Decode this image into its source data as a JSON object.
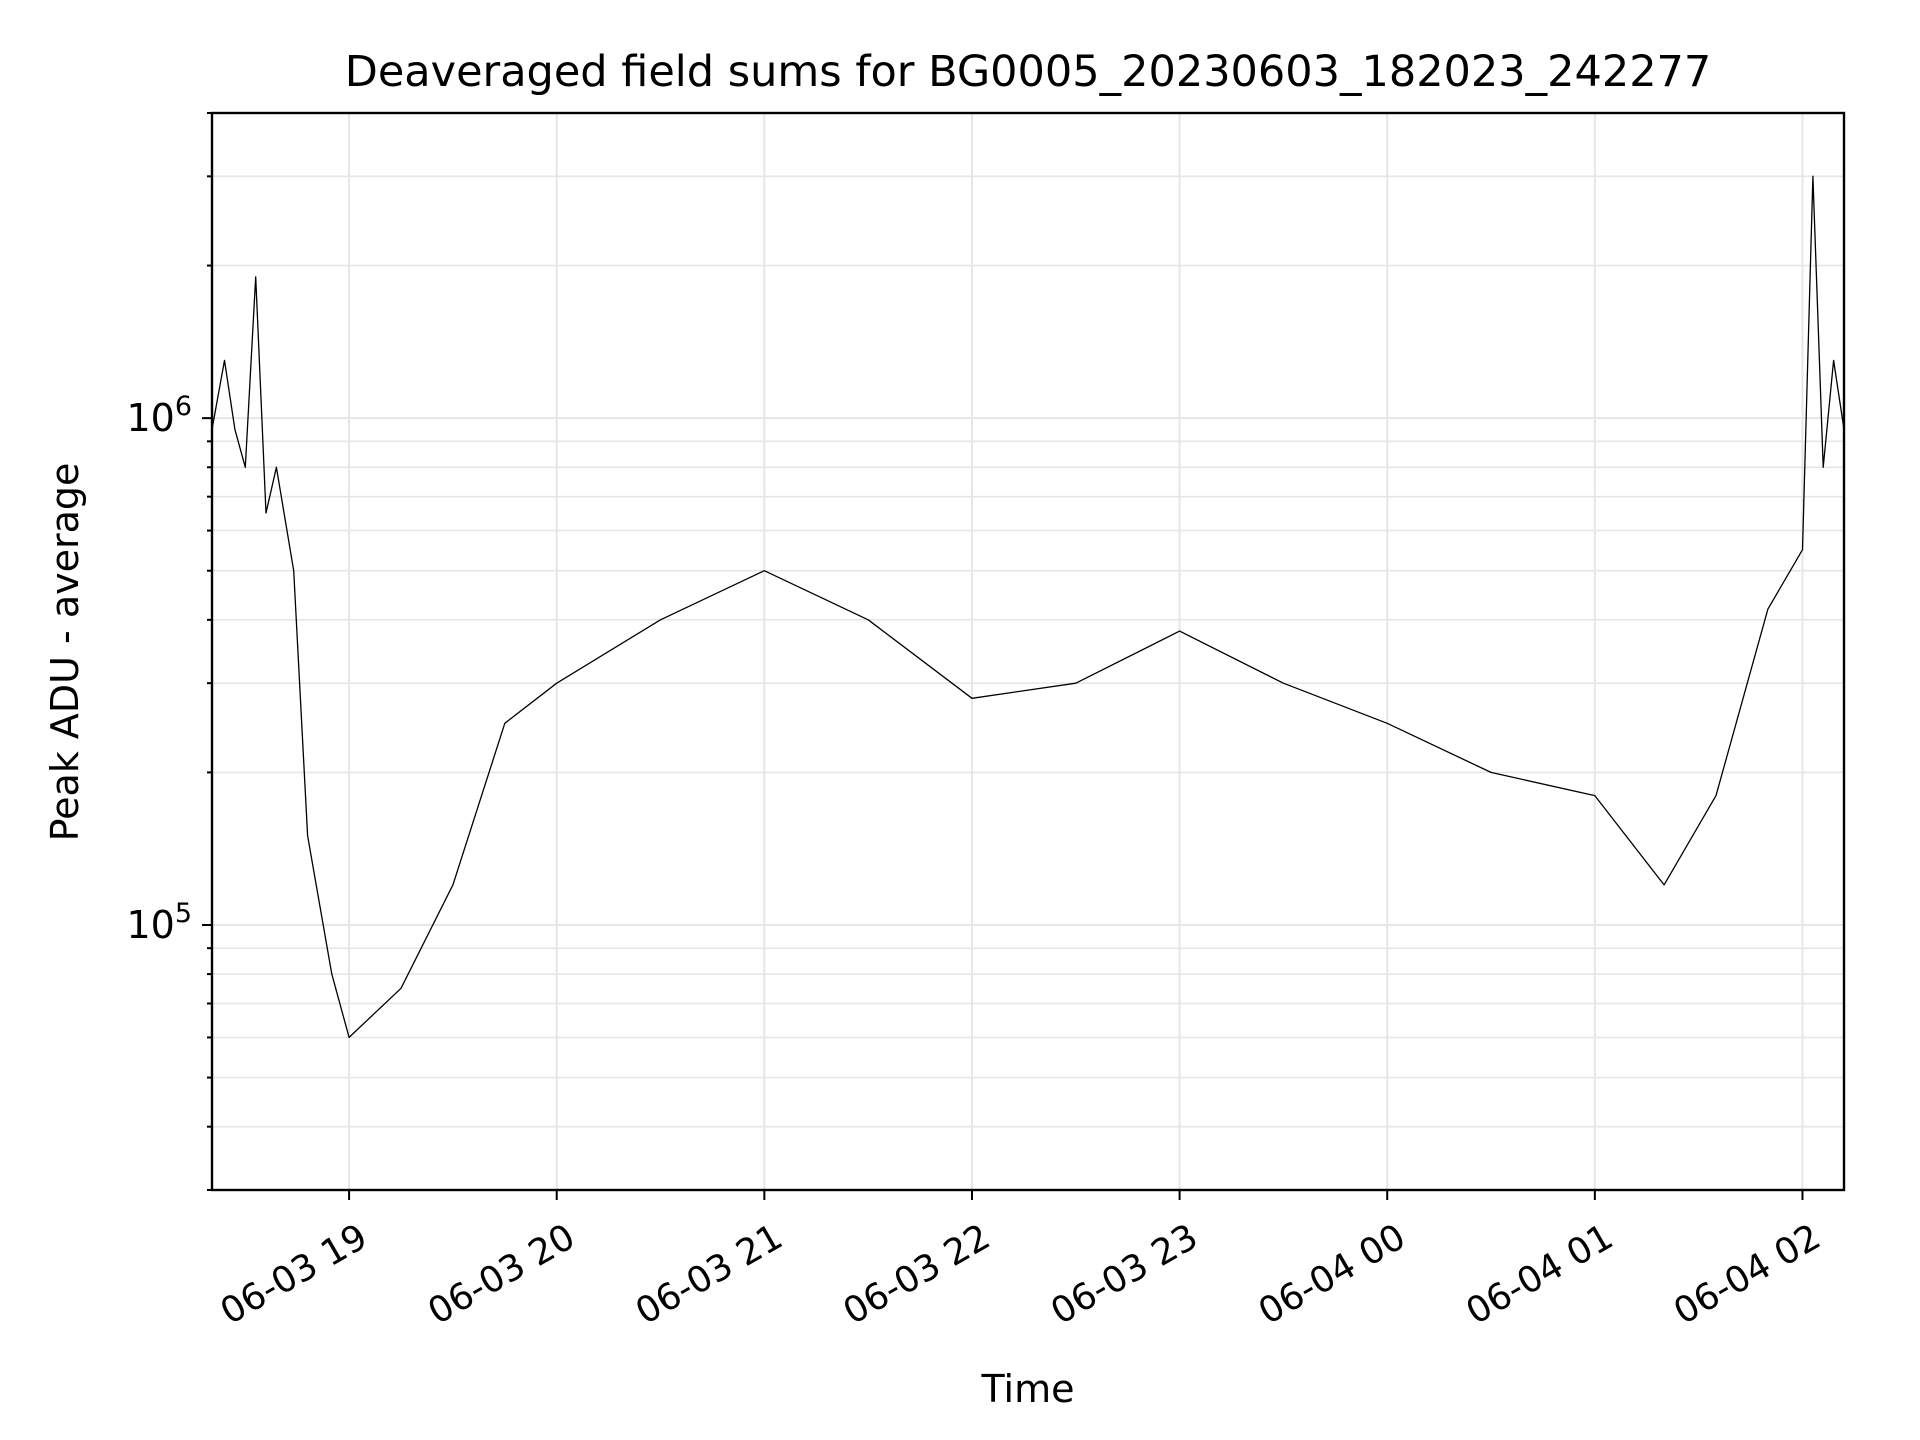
{
  "chart_data": {
    "type": "line",
    "title": "Deaveraged field sums for BG0005_20230603_182023_242277",
    "xlabel": "Time",
    "ylabel": "Peak ADU - average",
    "x_range": [
      "2023-06-03T18:20:23",
      "2023-06-04T02:12:00"
    ],
    "x_ticks": [
      "06-03 19",
      "06-03 20",
      "06-03 21",
      "06-03 22",
      "06-03 23",
      "06-04 00",
      "06-04 01",
      "06-04 02"
    ],
    "y_scale": "log",
    "ylim": [
      30000,
      4000000
    ],
    "y_ticks": [
      {
        "value": 100000,
        "base": "10",
        "exp": "5"
      },
      {
        "value": 1000000,
        "base": "10",
        "exp": "6"
      }
    ],
    "grid": true,
    "line_color": "#000000",
    "series": [
      {
        "values": [
          [
            "2023-06-03T18:20:23",
            950000
          ],
          [
            "2023-06-03T18:24:00",
            1300000
          ],
          [
            "2023-06-03T18:27:00",
            950000
          ],
          [
            "2023-06-03T18:30:00",
            800000
          ],
          [
            "2023-06-03T18:33:00",
            1900000
          ],
          [
            "2023-06-03T18:36:00",
            650000
          ],
          [
            "2023-06-03T18:39:00",
            800000
          ],
          [
            "2023-06-03T18:44:00",
            500000
          ],
          [
            "2023-06-03T18:48:00",
            150000
          ],
          [
            "2023-06-03T18:55:00",
            80000
          ],
          [
            "2023-06-03T19:00:00",
            60000
          ],
          [
            "2023-06-03T19:15:00",
            75000
          ],
          [
            "2023-06-03T19:30:00",
            120000
          ],
          [
            "2023-06-03T19:45:00",
            250000
          ],
          [
            "2023-06-03T20:00:00",
            300000
          ],
          [
            "2023-06-03T20:30:00",
            400000
          ],
          [
            "2023-06-03T21:00:00",
            500000
          ],
          [
            "2023-06-03T21:30:00",
            400000
          ],
          [
            "2023-06-03T22:00:00",
            280000
          ],
          [
            "2023-06-03T22:30:00",
            300000
          ],
          [
            "2023-06-03T23:00:00",
            380000
          ],
          [
            "2023-06-03T23:30:00",
            300000
          ],
          [
            "2023-06-04T00:00:00",
            250000
          ],
          [
            "2023-06-04T00:30:00",
            200000
          ],
          [
            "2023-06-04T01:00:00",
            180000
          ],
          [
            "2023-06-04T01:20:00",
            120000
          ],
          [
            "2023-06-04T01:35:00",
            180000
          ],
          [
            "2023-06-04T01:50:00",
            420000
          ],
          [
            "2023-06-04T02:00:00",
            550000
          ],
          [
            "2023-06-04T02:03:00",
            3000000
          ],
          [
            "2023-06-04T02:06:00",
            800000
          ],
          [
            "2023-06-04T02:09:00",
            1300000
          ],
          [
            "2023-06-04T02:12:00",
            950000
          ]
        ]
      }
    ]
  }
}
